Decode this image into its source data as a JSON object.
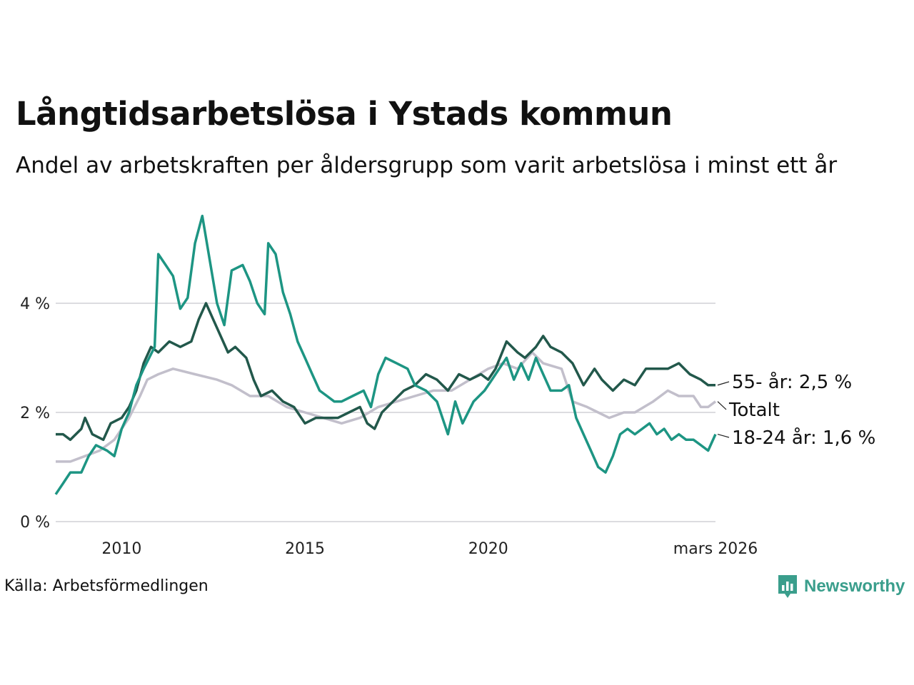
{
  "title": "Långtidsarbetslösa i Ystads kommun",
  "subtitle": "Andel av arbetskraften per åldersgrupp som varit arbetslösa i minst ett år",
  "source": "Källa: Arbetsförmedlingen",
  "brand": "Newsworthy",
  "chart_data": {
    "type": "line",
    "xlim": [
      2008.2,
      2026.2
    ],
    "ylim": [
      0,
      5.7
    ],
    "y_ticks": [
      {
        "value": 0,
        "label": "0 %"
      },
      {
        "value": 2,
        "label": "2 %"
      },
      {
        "value": 4,
        "label": "4 %"
      }
    ],
    "x_ticks": [
      {
        "value": 2010,
        "label": "2010"
      },
      {
        "value": 2015,
        "label": "2015"
      },
      {
        "value": 2020,
        "label": "2020"
      },
      {
        "value": 2026.2,
        "label": "mars 2026"
      }
    ],
    "series": [
      {
        "name": "Totalt",
        "label": "Totalt",
        "color": "#c2bfcb",
        "points": [
          [
            2008.2,
            1.1
          ],
          [
            2008.6,
            1.1
          ],
          [
            2009.0,
            1.2
          ],
          [
            2009.4,
            1.3
          ],
          [
            2009.8,
            1.5
          ],
          [
            2010.2,
            1.9
          ],
          [
            2010.5,
            2.3
          ],
          [
            2010.7,
            2.6
          ],
          [
            2011.0,
            2.7
          ],
          [
            2011.4,
            2.8
          ],
          [
            2012.0,
            2.7
          ],
          [
            2012.6,
            2.6
          ],
          [
            2013.0,
            2.5
          ],
          [
            2013.5,
            2.3
          ],
          [
            2014.0,
            2.3
          ],
          [
            2014.5,
            2.1
          ],
          [
            2015.0,
            2.0
          ],
          [
            2015.5,
            1.9
          ],
          [
            2016.0,
            1.8
          ],
          [
            2016.5,
            1.9
          ],
          [
            2017.0,
            2.1
          ],
          [
            2017.5,
            2.2
          ],
          [
            2018.0,
            2.3
          ],
          [
            2018.5,
            2.4
          ],
          [
            2019.0,
            2.4
          ],
          [
            2019.5,
            2.6
          ],
          [
            2020.0,
            2.8
          ],
          [
            2020.4,
            2.9
          ],
          [
            2020.8,
            2.8
          ],
          [
            2021.2,
            3.1
          ],
          [
            2021.5,
            2.9
          ],
          [
            2022.0,
            2.8
          ],
          [
            2022.3,
            2.2
          ],
          [
            2022.7,
            2.1
          ],
          [
            2023.0,
            2.0
          ],
          [
            2023.3,
            1.9
          ],
          [
            2023.7,
            2.0
          ],
          [
            2024.0,
            2.0
          ],
          [
            2024.5,
            2.2
          ],
          [
            2024.9,
            2.4
          ],
          [
            2025.2,
            2.3
          ],
          [
            2025.6,
            2.3
          ],
          [
            2025.8,
            2.1
          ],
          [
            2026.0,
            2.1
          ],
          [
            2026.2,
            2.2
          ]
        ]
      },
      {
        "name": "55- år",
        "label": "55- år: 2,5 %",
        "color": "#22584b",
        "points": [
          [
            2008.2,
            1.6
          ],
          [
            2008.4,
            1.6
          ],
          [
            2008.6,
            1.5
          ],
          [
            2008.9,
            1.7
          ],
          [
            2009.0,
            1.9
          ],
          [
            2009.2,
            1.6
          ],
          [
            2009.5,
            1.5
          ],
          [
            2009.7,
            1.8
          ],
          [
            2010.0,
            1.9
          ],
          [
            2010.2,
            2.1
          ],
          [
            2010.4,
            2.4
          ],
          [
            2010.6,
            2.9
          ],
          [
            2010.8,
            3.2
          ],
          [
            2011.0,
            3.1
          ],
          [
            2011.3,
            3.3
          ],
          [
            2011.6,
            3.2
          ],
          [
            2011.9,
            3.3
          ],
          [
            2012.1,
            3.7
          ],
          [
            2012.3,
            4.0
          ],
          [
            2012.5,
            3.7
          ],
          [
            2012.7,
            3.4
          ],
          [
            2012.9,
            3.1
          ],
          [
            2013.1,
            3.2
          ],
          [
            2013.4,
            3.0
          ],
          [
            2013.6,
            2.6
          ],
          [
            2013.8,
            2.3
          ],
          [
            2014.1,
            2.4
          ],
          [
            2014.4,
            2.2
          ],
          [
            2014.7,
            2.1
          ],
          [
            2015.0,
            1.8
          ],
          [
            2015.3,
            1.9
          ],
          [
            2015.6,
            1.9
          ],
          [
            2015.9,
            1.9
          ],
          [
            2016.2,
            2.0
          ],
          [
            2016.5,
            2.1
          ],
          [
            2016.7,
            1.8
          ],
          [
            2016.9,
            1.7
          ],
          [
            2017.1,
            2.0
          ],
          [
            2017.4,
            2.2
          ],
          [
            2017.7,
            2.4
          ],
          [
            2018.0,
            2.5
          ],
          [
            2018.3,
            2.7
          ],
          [
            2018.6,
            2.6
          ],
          [
            2018.9,
            2.4
          ],
          [
            2019.2,
            2.7
          ],
          [
            2019.5,
            2.6
          ],
          [
            2019.8,
            2.7
          ],
          [
            2020.0,
            2.6
          ],
          [
            2020.2,
            2.8
          ],
          [
            2020.5,
            3.3
          ],
          [
            2020.8,
            3.1
          ],
          [
            2021.0,
            3.0
          ],
          [
            2021.3,
            3.2
          ],
          [
            2021.5,
            3.4
          ],
          [
            2021.7,
            3.2
          ],
          [
            2022.0,
            3.1
          ],
          [
            2022.3,
            2.9
          ],
          [
            2022.6,
            2.5
          ],
          [
            2022.9,
            2.8
          ],
          [
            2023.1,
            2.6
          ],
          [
            2023.4,
            2.4
          ],
          [
            2023.7,
            2.6
          ],
          [
            2024.0,
            2.5
          ],
          [
            2024.3,
            2.8
          ],
          [
            2024.6,
            2.8
          ],
          [
            2024.9,
            2.8
          ],
          [
            2025.2,
            2.9
          ],
          [
            2025.5,
            2.7
          ],
          [
            2025.8,
            2.6
          ],
          [
            2026.0,
            2.5
          ],
          [
            2026.2,
            2.5
          ]
        ]
      },
      {
        "name": "18-24 år",
        "label": "18-24 år: 1,6 %",
        "color": "#1d9583",
        "points": [
          [
            2008.2,
            0.5
          ],
          [
            2008.4,
            0.7
          ],
          [
            2008.6,
            0.9
          ],
          [
            2008.9,
            0.9
          ],
          [
            2009.1,
            1.2
          ],
          [
            2009.3,
            1.4
          ],
          [
            2009.6,
            1.3
          ],
          [
            2009.8,
            1.2
          ],
          [
            2010.0,
            1.7
          ],
          [
            2010.2,
            2.0
          ],
          [
            2010.4,
            2.5
          ],
          [
            2010.6,
            2.8
          ],
          [
            2010.9,
            3.2
          ],
          [
            2011.0,
            4.9
          ],
          [
            2011.2,
            4.7
          ],
          [
            2011.4,
            4.5
          ],
          [
            2011.6,
            3.9
          ],
          [
            2011.8,
            4.1
          ],
          [
            2012.0,
            5.1
          ],
          [
            2012.2,
            5.6
          ],
          [
            2012.4,
            4.8
          ],
          [
            2012.6,
            4.0
          ],
          [
            2012.8,
            3.6
          ],
          [
            2013.0,
            4.6
          ],
          [
            2013.3,
            4.7
          ],
          [
            2013.5,
            4.4
          ],
          [
            2013.7,
            4.0
          ],
          [
            2013.9,
            3.8
          ],
          [
            2014.0,
            5.1
          ],
          [
            2014.2,
            4.9
          ],
          [
            2014.4,
            4.2
          ],
          [
            2014.6,
            3.8
          ],
          [
            2014.8,
            3.3
          ],
          [
            2015.0,
            3.0
          ],
          [
            2015.2,
            2.7
          ],
          [
            2015.4,
            2.4
          ],
          [
            2015.6,
            2.3
          ],
          [
            2015.8,
            2.2
          ],
          [
            2016.0,
            2.2
          ],
          [
            2016.3,
            2.3
          ],
          [
            2016.6,
            2.4
          ],
          [
            2016.8,
            2.1
          ],
          [
            2017.0,
            2.7
          ],
          [
            2017.2,
            3.0
          ],
          [
            2017.5,
            2.9
          ],
          [
            2017.8,
            2.8
          ],
          [
            2018.0,
            2.5
          ],
          [
            2018.3,
            2.4
          ],
          [
            2018.6,
            2.2
          ],
          [
            2018.9,
            1.6
          ],
          [
            2019.1,
            2.2
          ],
          [
            2019.3,
            1.8
          ],
          [
            2019.6,
            2.2
          ],
          [
            2019.9,
            2.4
          ],
          [
            2020.1,
            2.6
          ],
          [
            2020.3,
            2.8
          ],
          [
            2020.5,
            3.0
          ],
          [
            2020.7,
            2.6
          ],
          [
            2020.9,
            2.9
          ],
          [
            2021.1,
            2.6
          ],
          [
            2021.3,
            3.0
          ],
          [
            2021.5,
            2.7
          ],
          [
            2021.7,
            2.4
          ],
          [
            2022.0,
            2.4
          ],
          [
            2022.2,
            2.5
          ],
          [
            2022.4,
            1.9
          ],
          [
            2022.6,
            1.6
          ],
          [
            2022.8,
            1.3
          ],
          [
            2023.0,
            1.0
          ],
          [
            2023.2,
            0.9
          ],
          [
            2023.4,
            1.2
          ],
          [
            2023.6,
            1.6
          ],
          [
            2023.8,
            1.7
          ],
          [
            2024.0,
            1.6
          ],
          [
            2024.2,
            1.7
          ],
          [
            2024.4,
            1.8
          ],
          [
            2024.6,
            1.6
          ],
          [
            2024.8,
            1.7
          ],
          [
            2025.0,
            1.5
          ],
          [
            2025.2,
            1.6
          ],
          [
            2025.4,
            1.5
          ],
          [
            2025.6,
            1.5
          ],
          [
            2025.8,
            1.4
          ],
          [
            2026.0,
            1.3
          ],
          [
            2026.2,
            1.6
          ]
        ]
      }
    ]
  }
}
